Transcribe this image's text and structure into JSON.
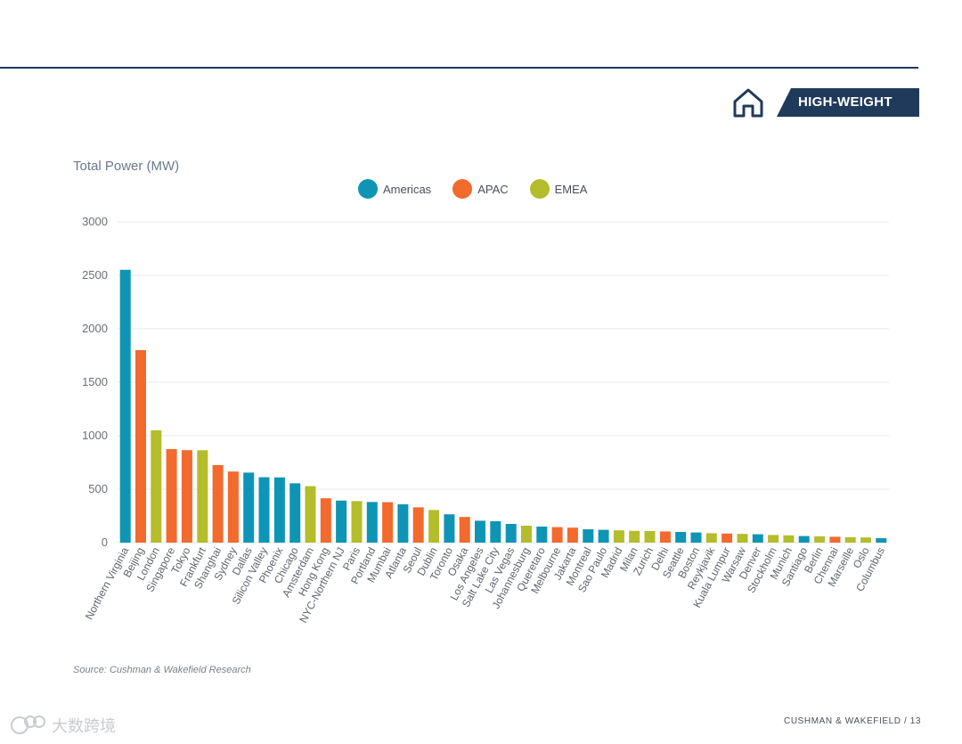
{
  "badge": {
    "label": "HIGH-WEIGHT",
    "icon": "home-icon",
    "color": "#1f3a5a"
  },
  "footer": {
    "text": "CUSHMAN & WAKEFIELD / 13"
  },
  "source": "Source: Cushman & Wakefield Research",
  "watermark": {
    "text": "大数跨境"
  },
  "colors": {
    "Americas": "#0e95b5",
    "APAC": "#f26a2e",
    "EMEA": "#b4bd2b",
    "grid": "#e6e9ec",
    "axis_text": "#6b7177"
  },
  "chart_data": {
    "type": "bar",
    "title": "Total Power (MW)",
    "ylim": [
      0,
      3000
    ],
    "yticks": [
      0,
      500,
      1000,
      1500,
      2000,
      2500,
      3000
    ],
    "grid": true,
    "legend_position": "top-center",
    "legend": [
      "Americas",
      "APAC",
      "EMEA"
    ],
    "bars": [
      {
        "market": "Northern Virginia",
        "region": "Americas",
        "value": 2552
      },
      {
        "market": "Beijing",
        "region": "APAC",
        "value": 1800
      },
      {
        "market": "London",
        "region": "EMEA",
        "value": 1050
      },
      {
        "market": "Singapore",
        "region": "APAC",
        "value": 875
      },
      {
        "market": "Tokyo",
        "region": "APAC",
        "value": 865
      },
      {
        "market": "Frankfurt",
        "region": "EMEA",
        "value": 864
      },
      {
        "market": "Shanghai",
        "region": "APAC",
        "value": 725
      },
      {
        "market": "Sydney",
        "region": "APAC",
        "value": 665
      },
      {
        "market": "Dallas",
        "region": "Americas",
        "value": 655
      },
      {
        "market": "Silicon Valley",
        "region": "Americas",
        "value": 612
      },
      {
        "market": "Phoenix",
        "region": "Americas",
        "value": 610
      },
      {
        "market": "Chicago",
        "region": "Americas",
        "value": 555
      },
      {
        "market": "Amsterdam",
        "region": "EMEA",
        "value": 528
      },
      {
        "market": "Hong Kong",
        "region": "APAC",
        "value": 415
      },
      {
        "market": "NYC-Northern NJ",
        "region": "Americas",
        "value": 393
      },
      {
        "market": "Paris",
        "region": "EMEA",
        "value": 388
      },
      {
        "market": "Portland",
        "region": "Americas",
        "value": 380
      },
      {
        "market": "Mumbai",
        "region": "APAC",
        "value": 378
      },
      {
        "market": "Atlanta",
        "region": "Americas",
        "value": 358
      },
      {
        "market": "Seoul",
        "region": "APAC",
        "value": 330
      },
      {
        "market": "Dublin",
        "region": "EMEA",
        "value": 305
      },
      {
        "market": "Toronto",
        "region": "Americas",
        "value": 265
      },
      {
        "market": "Osaka",
        "region": "APAC",
        "value": 240
      },
      {
        "market": "Los Angeles",
        "region": "Americas",
        "value": 205
      },
      {
        "market": "Salt Lake City",
        "region": "Americas",
        "value": 200
      },
      {
        "market": "Las Vegas",
        "region": "Americas",
        "value": 175
      },
      {
        "market": "Johannesburg",
        "region": "EMEA",
        "value": 158
      },
      {
        "market": "Queretaro",
        "region": "Americas",
        "value": 150
      },
      {
        "market": "Melbourne",
        "region": "APAC",
        "value": 145
      },
      {
        "market": "Jakarta",
        "region": "APAC",
        "value": 140
      },
      {
        "market": "Montreal",
        "region": "Americas",
        "value": 125
      },
      {
        "market": "Sao Paulo",
        "region": "Americas",
        "value": 120
      },
      {
        "market": "Madrid",
        "region": "EMEA",
        "value": 115
      },
      {
        "market": "Milan",
        "region": "EMEA",
        "value": 110
      },
      {
        "market": "Zurich",
        "region": "EMEA",
        "value": 108
      },
      {
        "market": "Delhi",
        "region": "APAC",
        "value": 105
      },
      {
        "market": "Seattle",
        "region": "Americas",
        "value": 100
      },
      {
        "market": "Boston",
        "region": "Americas",
        "value": 95
      },
      {
        "market": "Reykjavik",
        "region": "EMEA",
        "value": 88
      },
      {
        "market": "Kuala Lumpur",
        "region": "APAC",
        "value": 85
      },
      {
        "market": "Warsaw",
        "region": "EMEA",
        "value": 82
      },
      {
        "market": "Denver",
        "region": "Americas",
        "value": 78
      },
      {
        "market": "Stockholm",
        "region": "EMEA",
        "value": 72
      },
      {
        "market": "Munich",
        "region": "EMEA",
        "value": 68
      },
      {
        "market": "Santiago",
        "region": "Americas",
        "value": 62
      },
      {
        "market": "Berlin",
        "region": "EMEA",
        "value": 58
      },
      {
        "market": "Chennai",
        "region": "APAC",
        "value": 55
      },
      {
        "market": "Marseille",
        "region": "EMEA",
        "value": 50
      },
      {
        "market": "Oslo",
        "region": "EMEA",
        "value": 48
      },
      {
        "market": "Columbus",
        "region": "Americas",
        "value": 42
      }
    ]
  }
}
